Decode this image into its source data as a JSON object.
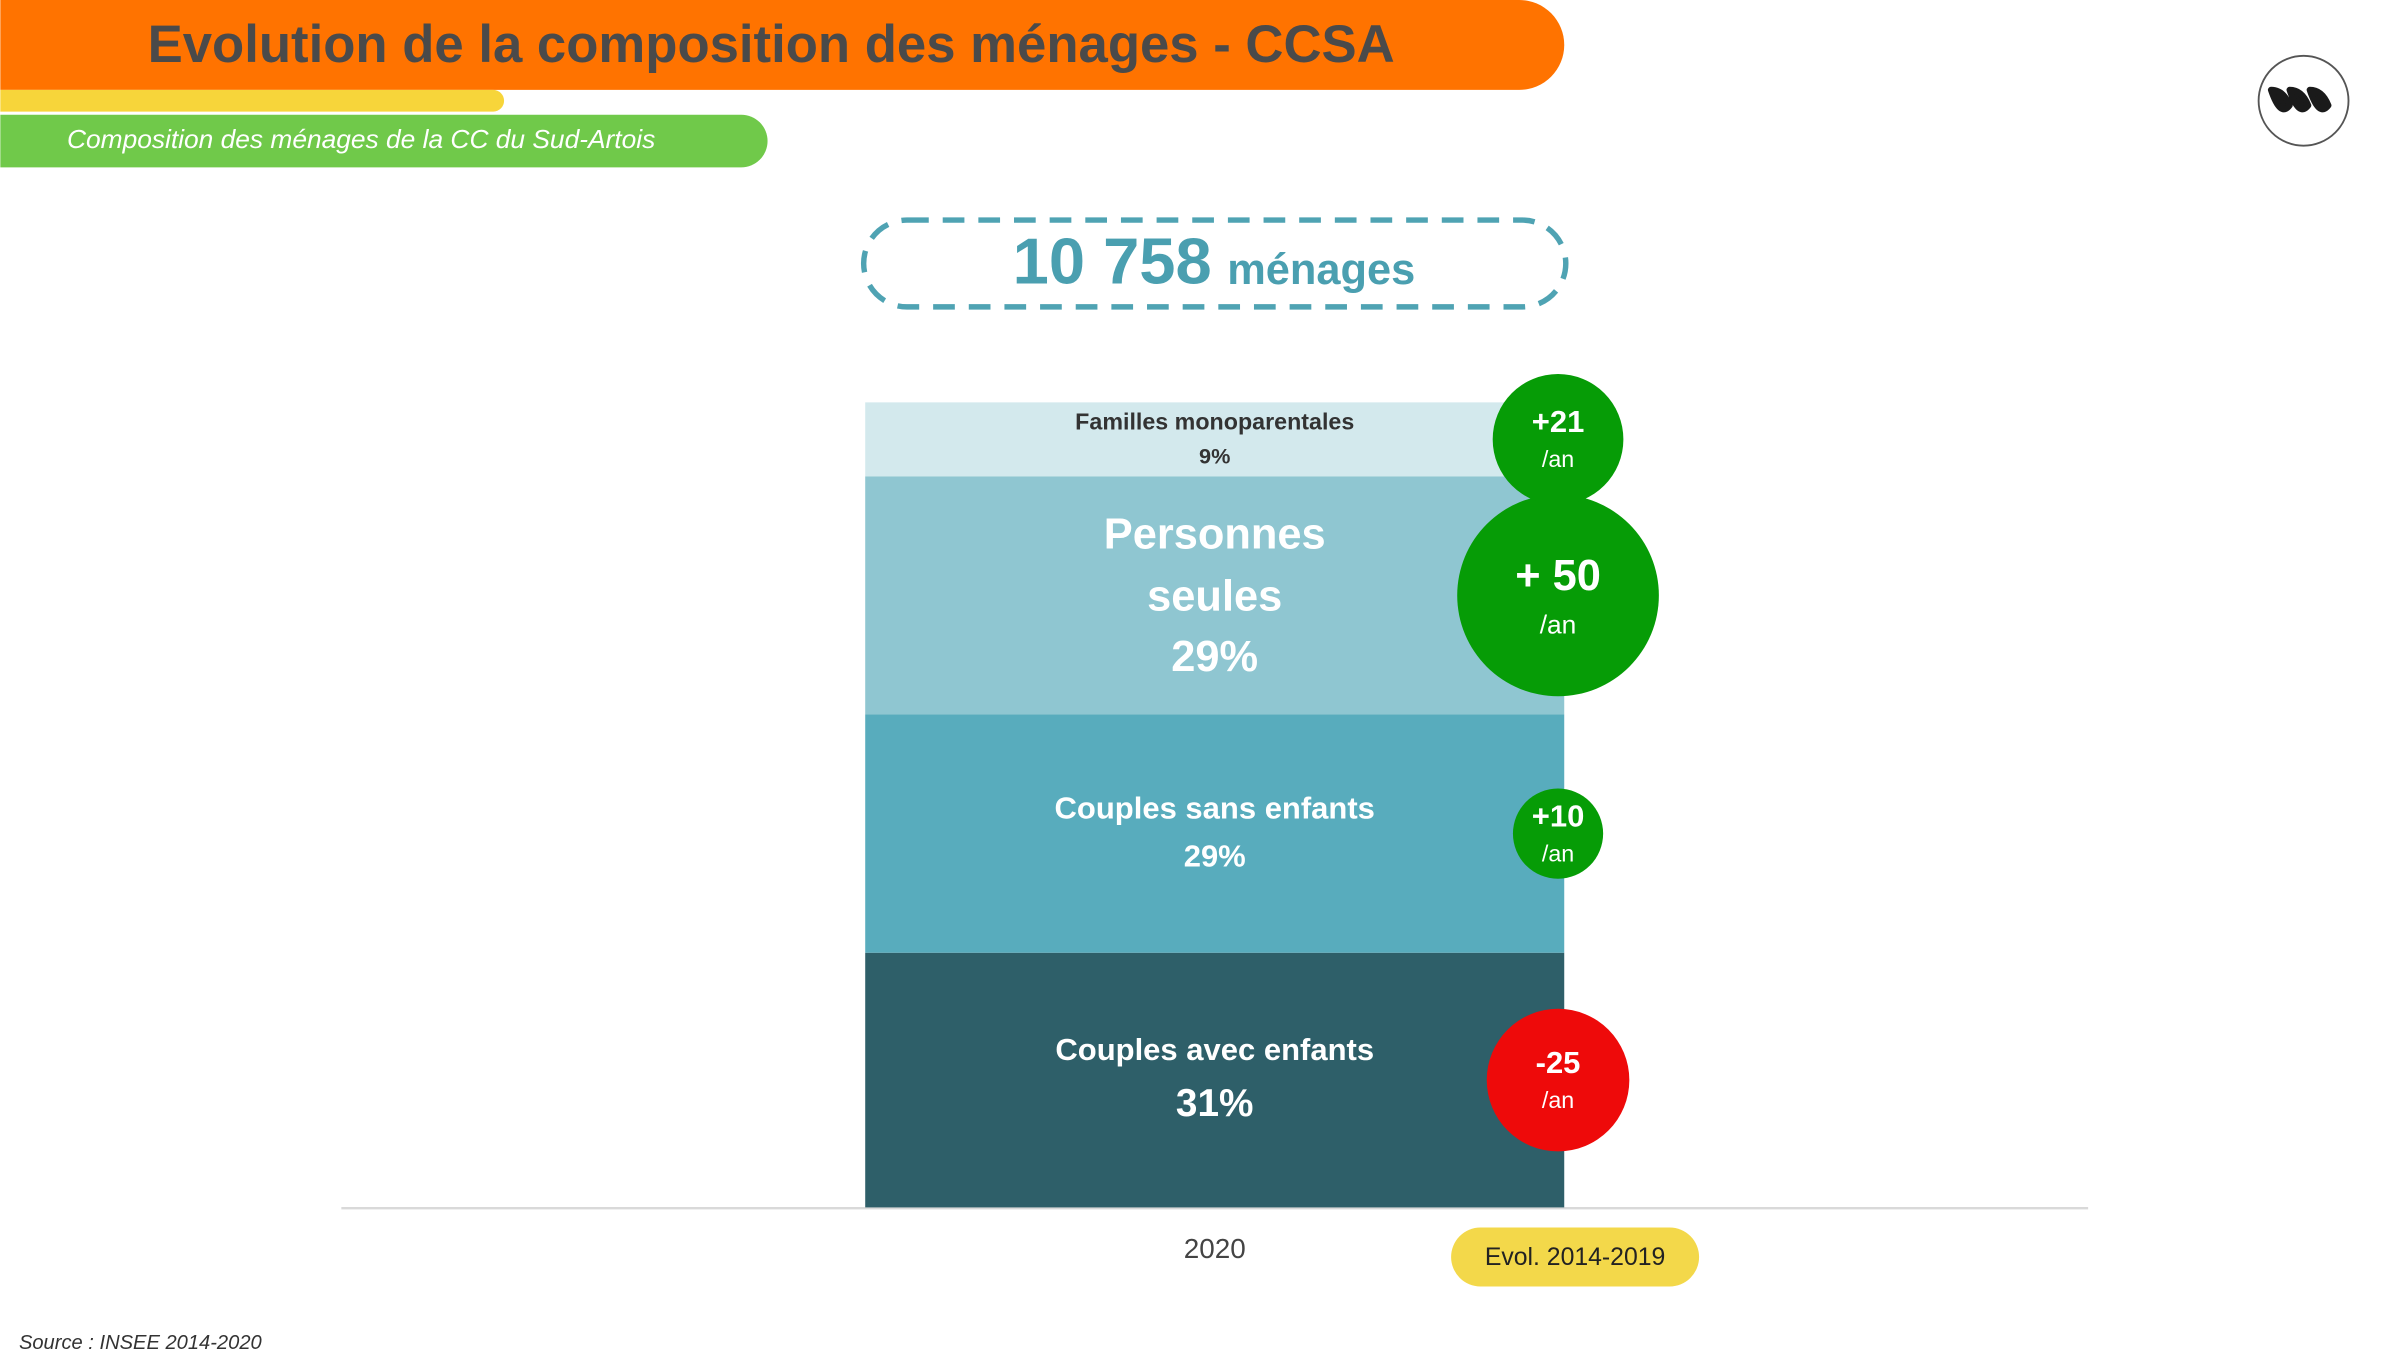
{
  "header": {
    "title": "Evolution de la composition des ménages - CCSA",
    "subtitle": "Composition des ménages de la CC du Sud-Artois"
  },
  "total_households": {
    "value": 10758,
    "label": "10 758",
    "unit": "ménages"
  },
  "chart_data": {
    "type": "stacked_bar",
    "categories": [
      "2020"
    ],
    "ylim": [
      0,
      100
    ],
    "series": [
      {
        "name": "Couples avec enfants",
        "color": "#2e5f69",
        "values": [
          31
        ],
        "value_labels": [
          "31%"
        ]
      },
      {
        "name": "Couples sans enfants",
        "color": "#58acbd",
        "values": [
          29
        ],
        "value_labels": [
          "29%"
        ]
      },
      {
        "name": "Personnes seules",
        "color": "#8fc6d1",
        "values": [
          29
        ],
        "value_labels": [
          "29%"
        ]
      },
      {
        "name": "Familles monoparentales",
        "color": "#d3e9ed",
        "values": [
          9
        ],
        "value_labels": [
          "9%"
        ]
      }
    ],
    "evolution": {
      "label": "Evol. 2014-2019",
      "unit": "/an",
      "values": [
        -25,
        10,
        50,
        21
      ],
      "value_labels": [
        "-25",
        "+10",
        "+ 50",
        "+21"
      ],
      "positive_color": "#069c06",
      "negative_color": "#ee0a0a"
    }
  },
  "source": "Source :  INSEE 2014-2020"
}
